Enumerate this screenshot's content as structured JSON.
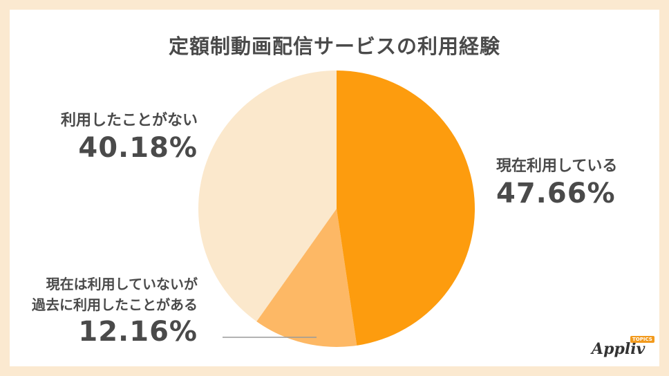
{
  "chart_data": {
    "type": "pie",
    "title": "定額制動画配信サービスの利用経験",
    "slices": [
      {
        "label": "現在利用している",
        "value": 47.66,
        "display": "47.66%",
        "color": "#fd9c0e"
      },
      {
        "label_lines": [
          "現在は利用していないが",
          "過去に利用したことがある"
        ],
        "value": 12.16,
        "display": "12.16%",
        "color": "#fdb865"
      },
      {
        "label": "利用したことがない",
        "value": 40.18,
        "display": "40.18%",
        "color": "#fbe8cc"
      }
    ]
  },
  "brand": {
    "name": "Appliv",
    "tag": "TOPICS"
  }
}
